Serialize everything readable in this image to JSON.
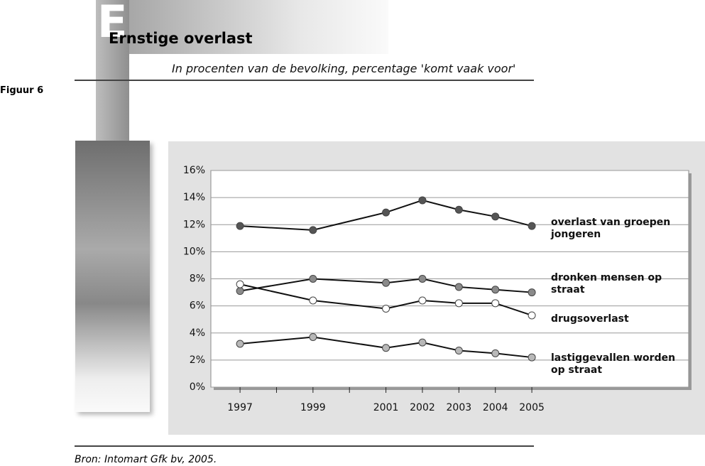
{
  "figure_label": "Figuur 6",
  "initial": "E",
  "source": "Bron: Intomart Gfk bv, 2005.",
  "chart_data": {
    "type": "line",
    "title": "Ernstige overlast",
    "subtitle": "In procenten van de bevolking, percentage 'komt vaak voor'",
    "x": [
      1997,
      1999,
      2001,
      2002,
      2003,
      2004,
      2005
    ],
    "xlim": [
      1996.2,
      2009.3
    ],
    "xticks": [
      1997,
      1999,
      2001,
      2002,
      2003,
      2004,
      2005
    ],
    "xminorticks": [
      1998,
      2000
    ],
    "ylim": [
      0,
      16
    ],
    "yticks": [
      {
        "value": 0,
        "label": "0%"
      },
      {
        "value": 2,
        "label": "2%"
      },
      {
        "value": 4,
        "label": "4%"
      },
      {
        "value": 6,
        "label": "6%"
      },
      {
        "value": 8,
        "label": "8%"
      },
      {
        "value": 10,
        "label": "10%"
      },
      {
        "value": 12,
        "label": "12%"
      },
      {
        "value": 14,
        "label": "14%"
      },
      {
        "value": 16,
        "label": "16%"
      }
    ],
    "grid": true,
    "series": [
      {
        "name": "overlast van groepen jongeren",
        "color": "#555555",
        "values": [
          11.9,
          11.6,
          12.9,
          13.8,
          13.1,
          12.6,
          11.9
        ]
      },
      {
        "name": "dronken mensen op straat",
        "color": "#8a8a8a",
        "values": [
          7.1,
          8.0,
          7.7,
          8.0,
          7.4,
          7.2,
          7.0
        ]
      },
      {
        "name": "drugsoverlast",
        "color": "#ffffff",
        "values": [
          7.6,
          6.4,
          5.8,
          6.4,
          6.2,
          6.2,
          5.3
        ]
      },
      {
        "name": "lastiggevallen worden op straat",
        "color": "#b8b8b8",
        "values": [
          3.2,
          3.7,
          2.9,
          3.3,
          2.7,
          2.5,
          2.2
        ]
      }
    ]
  }
}
